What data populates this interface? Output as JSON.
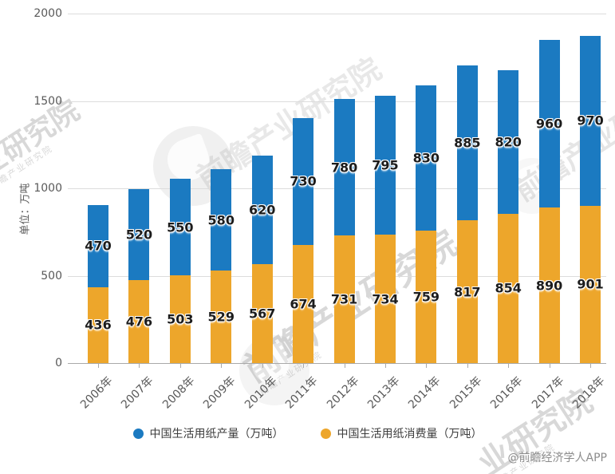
{
  "chart_data": {
    "type": "bar",
    "stacked": true,
    "title": "",
    "ylabel": "单位：万吨",
    "ylim": [
      0,
      2000
    ],
    "yticks": [
      0,
      500,
      1000,
      1500,
      2000
    ],
    "grid": true,
    "legend_position": "bottom",
    "categories": [
      "2006年",
      "2007年",
      "2008年",
      "2009年",
      "2010年",
      "2011年",
      "2012年",
      "2013年",
      "2014年",
      "2015年",
      "2016年",
      "2017年",
      "2018年"
    ],
    "series": [
      {
        "name": "中国生活用纸产量（万吨）",
        "color": "#1b7ac1",
        "stack_order": "top",
        "values": [
          470,
          520,
          550,
          580,
          620,
          730,
          780,
          795,
          830,
          885,
          820,
          960,
          970
        ]
      },
      {
        "name": "中国生活用纸消费量（万吨）",
        "color": "#eda62b",
        "stack_order": "bottom",
        "values": [
          436,
          476,
          503,
          529,
          567,
          674,
          731,
          734,
          759,
          817,
          854,
          890,
          901
        ]
      }
    ]
  },
  "watermark": {
    "brand": "前瞻产业研究院",
    "brand_partial": "业研究院",
    "sub_line": "前瞻产业研究院"
  },
  "attribution": "@前瞻经济学人APP",
  "colors": {
    "production_blue": "#1b7ac1",
    "consumption_orange": "#eda62b",
    "gridline": "#dcdcdc",
    "axis_text": "#595959",
    "value_text": "#1c1c1c"
  }
}
